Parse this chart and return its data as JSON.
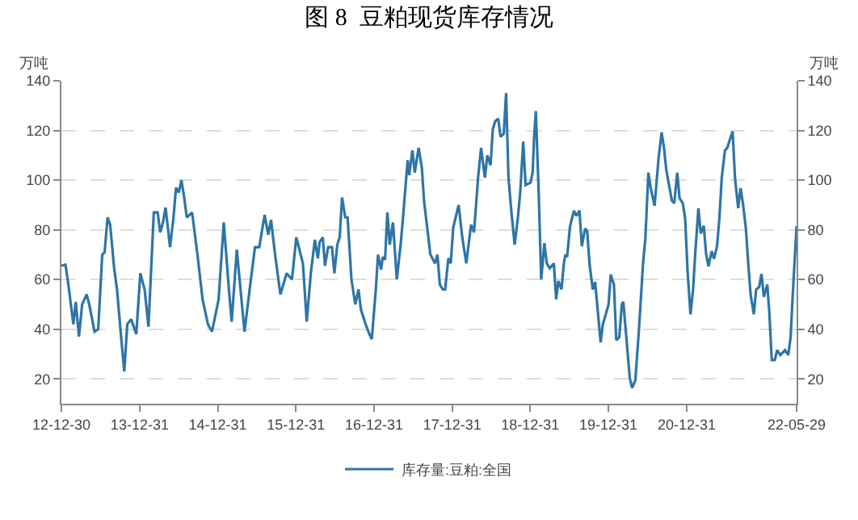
{
  "chart_data": {
    "type": "line",
    "title": "图 8  豆粕现货库存情况",
    "ylabel": "万吨",
    "y2label": "万吨",
    "xlim": [
      "2012-12-30",
      "2022-05-29"
    ],
    "xticks": [
      {
        "value": "2012-12-30",
        "label": "12-12-30"
      },
      {
        "value": "2013-12-31",
        "label": "13-12-31"
      },
      {
        "value": "2014-12-31",
        "label": "14-12-31"
      },
      {
        "value": "2015-12-31",
        "label": "15-12-31"
      },
      {
        "value": "2016-12-31",
        "label": "16-12-31"
      },
      {
        "value": "2017-12-31",
        "label": "17-12-31"
      },
      {
        "value": "2018-12-31",
        "label": "18-12-31"
      },
      {
        "value": "2019-12-31",
        "label": "19-12-31"
      },
      {
        "value": "2020-12-31",
        "label": "20-12-31"
      },
      {
        "value": "2022-05-29",
        "label": "22-05-29"
      }
    ],
    "ylim": [
      10,
      140
    ],
    "yticks": [
      20,
      40,
      60,
      80,
      100,
      120,
      140
    ],
    "y2lim": [
      10,
      140
    ],
    "y2ticks": [
      20,
      40,
      60,
      80,
      100,
      120,
      140
    ],
    "grid": "y",
    "legend": "bottom",
    "marker": "none",
    "line_style": "solid",
    "series": [
      {
        "name": "库存量:豆粕:全国",
        "color": "#2e75a6",
        "x": [
          "2012-12-30",
          "2013-01-18",
          "2013-01-30",
          "2013-02-24",
          "2013-03-07",
          "2013-03-22",
          "2013-04-06",
          "2013-04-27",
          "2013-05-09",
          "2013-06-03",
          "2013-06-20",
          "2013-07-09",
          "2013-07-20",
          "2013-08-03",
          "2013-08-15",
          "2013-09-02",
          "2013-09-16",
          "2013-10-04",
          "2013-10-20",
          "2013-11-03",
          "2013-11-21",
          "2013-12-15",
          "2014-01-03",
          "2014-01-23",
          "2014-02-10",
          "2014-03-07",
          "2014-03-25",
          "2014-04-06",
          "2014-04-19",
          "2014-05-01",
          "2014-05-22",
          "2014-06-07",
          "2014-06-19",
          "2014-07-02",
          "2014-07-14",
          "2014-07-27",
          "2014-08-08",
          "2014-09-02",
          "2014-09-27",
          "2014-10-21",
          "2014-11-15",
          "2014-12-04",
          "2015-01-04",
          "2015-01-28",
          "2015-02-21",
          "2015-03-06",
          "2015-03-30",
          "2015-04-23",
          "2015-05-05",
          "2015-05-29",
          "2015-06-23",
          "2015-07-13",
          "2015-08-07",
          "2015-08-24",
          "2015-09-06",
          "2015-09-25",
          "2015-10-20",
          "2015-11-18",
          "2015-12-13",
          "2016-01-02",
          "2016-02-02",
          "2016-02-20",
          "2016-03-10",
          "2016-03-29",
          "2016-04-12",
          "2016-04-20",
          "2016-05-05",
          "2016-05-15",
          "2016-05-30",
          "2016-06-17",
          "2016-06-28",
          "2016-07-12",
          "2016-07-23",
          "2016-08-03",
          "2016-08-18",
          "2016-08-29",
          "2016-09-16",
          "2016-10-04",
          "2016-10-19",
          "2016-10-30",
          "2016-11-21",
          "2016-12-09",
          "2016-12-20",
          "2017-01-08",
          "2017-01-18",
          "2017-02-02",
          "2017-02-09",
          "2017-02-20",
          "2017-03-03",
          "2017-03-14",
          "2017-03-29",
          "2017-04-16",
          "2017-05-05",
          "2017-05-15",
          "2017-05-30",
          "2017-06-06",
          "2017-06-13",
          "2017-06-28",
          "2017-07-09",
          "2017-07-16",
          "2017-07-27",
          "2017-08-11",
          "2017-08-22",
          "2017-09-05",
          "2017-09-20",
          "2017-10-12",
          "2017-10-23",
          "2017-11-03",
          "2017-11-17",
          "2017-11-28",
          "2017-12-13",
          "2017-12-24",
          "2018-01-05",
          "2018-01-30",
          "2018-02-16",
          "2018-03-07",
          "2018-03-29",
          "2018-04-12",
          "2018-05-01",
          "2018-05-15",
          "2018-06-02",
          "2018-06-13",
          "2018-06-28",
          "2018-07-09",
          "2018-07-20",
          "2018-08-03",
          "2018-08-14",
          "2018-08-29",
          "2018-09-09",
          "2018-09-20",
          "2018-10-04",
          "2018-10-19",
          "2018-11-03",
          "2018-11-14",
          "2018-11-28",
          "2018-12-09",
          "2019-01-01",
          "2019-01-11",
          "2019-01-18",
          "2019-01-26",
          "2019-02-09",
          "2019-02-20",
          "2019-03-07",
          "2019-03-18",
          "2019-04-01",
          "2019-04-20",
          "2019-05-01",
          "2019-05-11",
          "2019-05-26",
          "2019-06-06",
          "2019-06-13",
          "2019-06-21",
          "2019-07-05",
          "2019-07-23",
          "2019-08-03",
          "2019-08-18",
          "2019-08-29",
          "2019-09-13",
          "2019-09-23",
          "2019-10-04",
          "2019-10-19",
          "2019-10-30",
          "2019-11-25",
          "2019-12-05",
          "2020-01-01",
          "2020-01-11",
          "2020-01-26",
          "2020-02-06",
          "2020-02-20",
          "2020-03-03",
          "2020-03-10",
          "2020-03-29",
          "2020-04-09",
          "2020-04-20",
          "2020-05-05",
          "2020-05-22",
          "2020-06-10",
          "2020-06-21",
          "2020-07-05",
          "2020-07-16",
          "2020-08-03",
          "2020-08-22",
          "2020-09-05",
          "2020-09-16",
          "2020-09-27",
          "2020-10-23",
          "2020-11-03",
          "2020-11-17",
          "2020-11-28",
          "2020-12-13",
          "2020-12-24",
          "2021-01-05",
          "2021-01-18",
          "2021-01-30",
          "2021-02-09",
          "2021-02-24",
          "2021-03-07",
          "2021-03-21",
          "2021-04-01",
          "2021-04-12",
          "2021-04-27",
          "2021-05-08",
          "2021-05-22",
          "2021-06-02",
          "2021-06-13",
          "2021-06-28",
          "2021-07-09",
          "2021-07-20",
          "2021-08-03",
          "2021-08-14",
          "2021-08-29",
          "2021-09-09",
          "2021-09-20",
          "2021-10-04",
          "2021-10-15",
          "2021-10-26",
          "2021-11-10",
          "2021-11-21",
          "2021-12-05",
          "2021-12-16",
          "2021-12-27",
          "2022-01-12",
          "2022-01-22",
          "2022-02-02",
          "2022-02-16",
          "2022-02-27",
          "2022-03-14",
          "2022-04-05",
          "2022-04-20",
          "2022-05-01",
          "2022-05-11",
          "2022-05-29"
        ],
        "values": [
          65.5,
          66,
          59,
          42,
          51,
          37,
          50,
          54,
          50,
          39,
          40,
          70,
          71,
          85,
          82,
          65,
          56,
          38,
          23,
          42,
          44,
          38,
          62.5,
          56,
          41,
          87,
          87,
          79,
          83,
          89,
          73,
          85,
          97,
          95,
          100,
          93,
          85,
          87,
          70,
          52,
          42,
          39,
          52,
          83,
          56,
          43,
          72,
          50,
          39,
          56,
          73,
          73,
          86,
          78,
          84,
          70,
          54,
          62.5,
          60,
          77,
          66.5,
          43,
          62.5,
          76,
          68.5,
          75,
          77,
          65.5,
          73,
          73,
          62.5,
          74,
          77,
          93,
          85,
          85,
          60,
          50,
          56,
          48,
          42,
          38,
          36,
          56,
          70,
          64,
          69,
          68,
          87,
          74,
          83,
          60,
          75,
          85,
          101,
          108,
          102,
          112,
          103,
          107,
          113,
          105,
          91,
          81,
          70,
          66.5,
          70,
          58,
          56,
          56,
          68.5,
          66.5,
          81,
          90,
          77,
          66.5,
          82,
          79,
          101,
          113,
          101,
          110,
          106,
          120.6,
          123.7,
          124.7,
          117.5,
          118.6,
          135,
          101,
          87,
          74,
          85,
          95,
          115.5,
          98,
          99,
          103,
          117.5,
          127.8,
          93,
          60,
          74.6,
          66.5,
          64.5,
          66.5,
          52,
          59.4,
          56,
          66.5,
          70,
          69,
          81.5,
          87.7,
          85.6,
          87.7,
          73.4,
          80.5,
          79.5,
          66.3,
          56,
          59,
          34.7,
          41.8,
          50,
          62,
          58,
          35.6,
          36.7,
          50,
          51,
          31.6,
          20.4,
          16.4,
          19.4,
          39.8,
          66.3,
          76.5,
          103,
          96.8,
          89.7,
          109,
          119.2,
          113,
          104,
          91.7,
          90.7,
          103,
          92.7,
          90.7,
          84.6,
          62.2,
          46,
          56,
          70.3,
          88.7,
          78.5,
          81.6,
          70.3,
          65.3,
          71.4,
          68.3,
          73.4,
          84.6,
          100.9,
          112,
          113,
          116,
          119.6,
          100.9,
          88.7,
          96.8,
          90.7,
          80.5,
          66.3,
          54,
          46,
          56,
          57,
          62.2,
          53,
          58,
          46,
          27.6,
          27.6,
          31.6,
          29.6,
          31.6,
          29.6,
          36.7,
          54,
          81.5
        ]
      }
    ]
  }
}
